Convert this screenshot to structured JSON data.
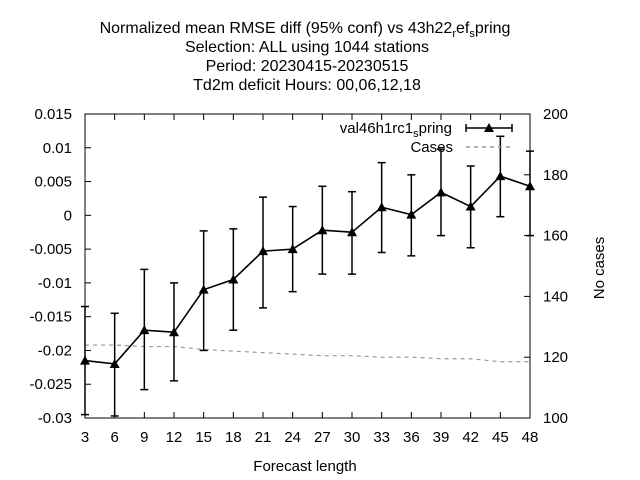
{
  "chart_data": {
    "type": "line",
    "title_lines": [
      "Normalized mean RMSE diff (95% conf) vs 43h22",
      "Selection: ALL using  1044 stations",
      "Period: 20230415-20230515",
      "Td2m deficit   Hours: 00,06,12,18"
    ],
    "title_sub_1": "r",
    "title_mid_1": "ef",
    "title_sub_2": "s",
    "title_tail": "pring",
    "xlabel": "Forecast length",
    "ylabel_right": "No cases",
    "x": [
      3,
      6,
      9,
      12,
      15,
      18,
      21,
      24,
      27,
      30,
      33,
      36,
      39,
      42,
      45,
      48
    ],
    "xlim": [
      3,
      48
    ],
    "ylim": [
      -0.03,
      0.015
    ],
    "y2lim": [
      100,
      200
    ],
    "yticks": [
      "-0.03",
      "-0.025",
      "-0.02",
      "-0.015",
      "-0.01",
      "-0.005",
      "0",
      "0.005",
      "0.01",
      "0.015"
    ],
    "y2ticks": [
      "100",
      "120",
      "140",
      "160",
      "180",
      "200"
    ],
    "series": [
      {
        "name": "val46h1rc1",
        "name_sub": "s",
        "name_tail": "pring",
        "color": "#000000",
        "values": [
          -0.0215,
          -0.022,
          -0.017,
          -0.0173,
          -0.011,
          -0.0095,
          -0.0053,
          -0.005,
          -0.0022,
          -0.0025,
          0.0012,
          0.0001,
          0.0034,
          0.0013,
          0.0058,
          0.0043
        ],
        "err_low": [
          -0.0295,
          -0.0297,
          -0.0258,
          -0.0245,
          -0.02,
          -0.017,
          -0.0137,
          -0.0113,
          -0.0087,
          -0.0087,
          -0.0055,
          -0.006,
          -0.003,
          -0.0048,
          -0.0002,
          -0.003
        ],
        "err_high": [
          -0.0135,
          -0.0145,
          -0.008,
          -0.01,
          -0.0023,
          -0.002,
          0.0027,
          0.0013,
          0.0043,
          0.0035,
          0.0078,
          0.006,
          0.0098,
          0.0073,
          0.0117,
          0.0095
        ]
      },
      {
        "name": "Cases",
        "axis": "right",
        "color": "#999999",
        "dash": true,
        "values": [
          124,
          124,
          123.5,
          123.5,
          122.5,
          122,
          121.5,
          121,
          120.5,
          120.5,
          120,
          120,
          119.5,
          119.5,
          118.5,
          118.5
        ]
      }
    ],
    "grid": false,
    "legend_position": "top-right"
  }
}
